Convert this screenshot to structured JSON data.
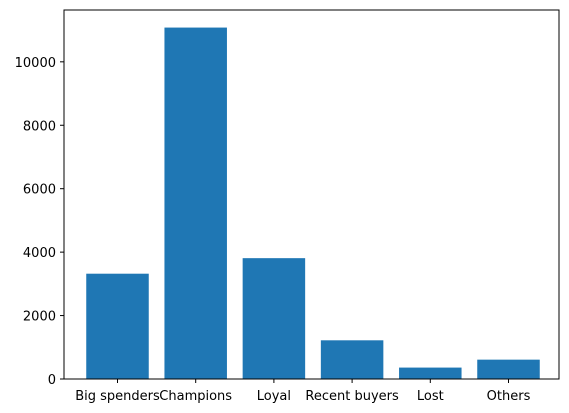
{
  "chart_data": {
    "type": "bar",
    "categories": [
      "Big spenders",
      "Champions",
      "Loyal",
      "Recent buyers",
      "Lost",
      "Others"
    ],
    "values": [
      3320,
      11080,
      3810,
      1220,
      360,
      610
    ],
    "title": "",
    "xlabel": "",
    "ylabel": "",
    "ylim": [
      0,
      11634
    ],
    "yticks": [
      0,
      2000,
      4000,
      6000,
      8000,
      10000
    ],
    "ytick_labels": [
      "0",
      "2000",
      "4000",
      "6000",
      "8000",
      "10000"
    ],
    "grid": false,
    "bar_color": "#1f77b4"
  }
}
